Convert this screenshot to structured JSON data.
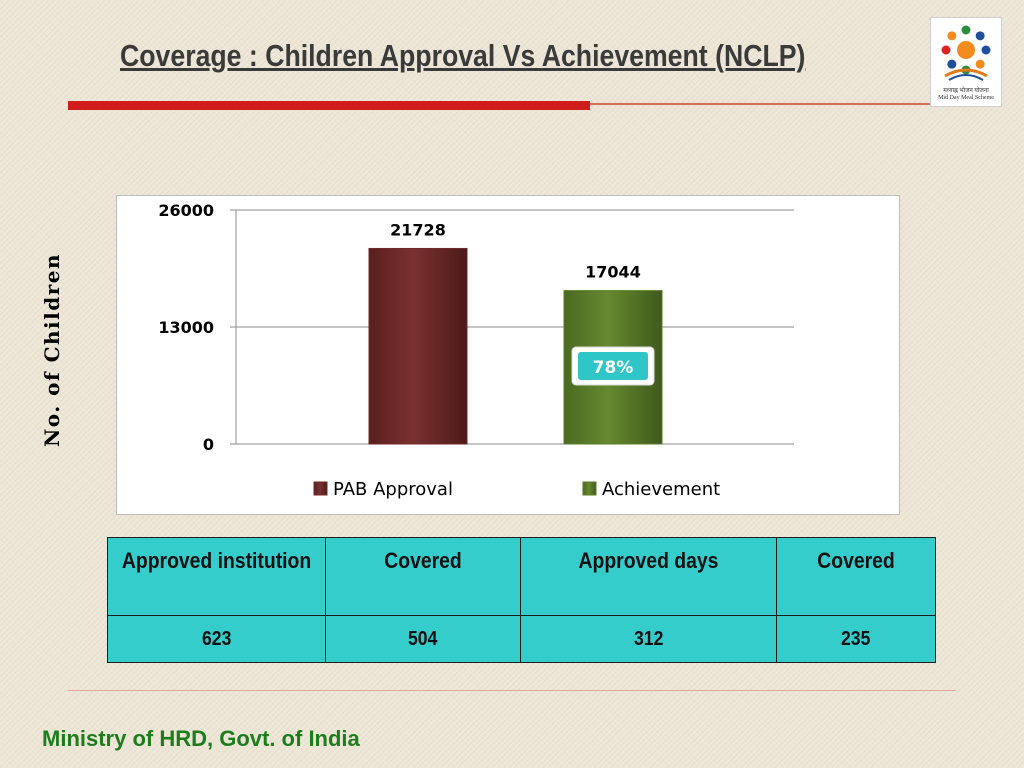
{
  "slide": {
    "title": "Coverage : Children Approval Vs Achievement (NCLP)",
    "footer": "Ministry of HRD, Govt. of India",
    "logo": {
      "icon": "mid-day-meal-logo-icon",
      "hindi_text": "मध्याह्न भोजन योजना",
      "english_text": "Mid Day Meal Scheme"
    }
  },
  "chart_data": {
    "type": "bar",
    "title": "",
    "xlabel": "",
    "ylabel": "No. of Children",
    "ylim": [
      0,
      26000
    ],
    "y_ticks": [
      0,
      13000,
      26000
    ],
    "grid": true,
    "legend_position": "bottom",
    "series": [
      {
        "name": "PAB Approval",
        "value": 21728,
        "color": "#6e2a2a"
      },
      {
        "name": "Achievement",
        "value": 17044,
        "color": "#5a7a2a"
      }
    ],
    "annotation": {
      "text": "78%",
      "series": "Achievement",
      "color": "#2ec6c6"
    }
  },
  "table": {
    "headers": [
      "Approved institution",
      "Covered",
      "Approved days",
      "Covered"
    ],
    "rows": [
      [
        "623",
        "504",
        "312",
        "235"
      ]
    ]
  }
}
